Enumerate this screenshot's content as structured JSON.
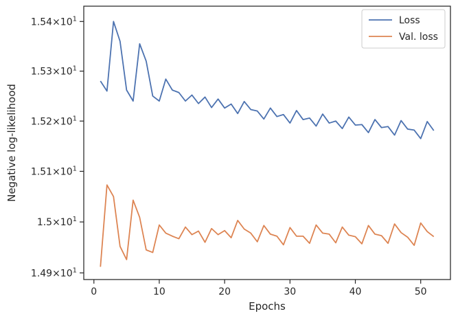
{
  "chart_data": {
    "type": "line",
    "title": "",
    "xlabel": "Epochs",
    "ylabel": "Negative log-likelihood",
    "xlim": [
      -1.55,
      54.55
    ],
    "ylim": [
      14.887,
      15.431
    ],
    "y_scale": "log",
    "grid": false,
    "legend_position": "top-right",
    "x_ticks": [
      0,
      10,
      20,
      30,
      40,
      50
    ],
    "y_ticks": [
      {
        "value": 14.9,
        "base": "1.49",
        "exp": "1"
      },
      {
        "value": 15.0,
        "base": "1.5",
        "exp": "1"
      },
      {
        "value": 15.1,
        "base": "1.51",
        "exp": "1"
      },
      {
        "value": 15.2,
        "base": "1.52",
        "exp": "1"
      },
      {
        "value": 15.3,
        "base": "1.53",
        "exp": "1"
      },
      {
        "value": 15.4,
        "base": "1.54",
        "exp": "1"
      }
    ],
    "x": [
      1,
      2,
      3,
      4,
      5,
      6,
      7,
      8,
      9,
      10,
      11,
      12,
      13,
      14,
      15,
      16,
      17,
      18,
      19,
      20,
      21,
      22,
      23,
      24,
      25,
      26,
      27,
      28,
      29,
      30,
      31,
      32,
      33,
      34,
      35,
      36,
      37,
      38,
      39,
      40,
      41,
      42,
      43,
      44,
      45,
      46,
      47,
      48,
      49,
      50,
      51,
      52
    ],
    "series": [
      {
        "name": "Loss",
        "color": "#4c72b0",
        "values": [
          15.28,
          15.26,
          15.4,
          15.36,
          15.262,
          15.24,
          15.355,
          15.32,
          15.25,
          15.24,
          15.284,
          15.262,
          15.257,
          15.24,
          15.252,
          15.235,
          15.248,
          15.227,
          15.244,
          15.226,
          15.234,
          15.215,
          15.239,
          15.223,
          15.22,
          15.204,
          15.226,
          15.209,
          15.213,
          15.196,
          15.221,
          15.203,
          15.206,
          15.19,
          15.214,
          15.196,
          15.2,
          15.185,
          15.208,
          15.192,
          15.193,
          15.177,
          15.203,
          15.187,
          15.189,
          15.172,
          15.201,
          15.184,
          15.182,
          15.165,
          15.199,
          15.181
        ]
      },
      {
        "name": "Val. loss",
        "color": "#dd8452",
        "values": [
          14.912,
          15.073,
          15.05,
          14.952,
          14.926,
          15.043,
          15.009,
          14.945,
          14.94,
          14.994,
          14.978,
          14.972,
          14.967,
          14.99,
          14.975,
          14.982,
          14.96,
          14.987,
          14.975,
          14.983,
          14.969,
          15.003,
          14.986,
          14.978,
          14.961,
          14.993,
          14.976,
          14.972,
          14.955,
          14.989,
          14.972,
          14.972,
          14.958,
          14.994,
          14.978,
          14.976,
          14.959,
          14.99,
          14.974,
          14.971,
          14.957,
          14.993,
          14.976,
          14.973,
          14.958,
          14.996,
          14.979,
          14.97,
          14.954,
          14.998,
          14.981,
          14.971
        ]
      }
    ]
  }
}
